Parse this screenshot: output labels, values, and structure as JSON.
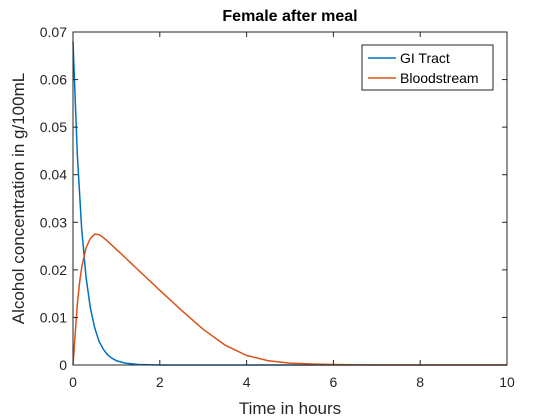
{
  "chart_data": {
    "type": "line",
    "title": "Female after meal",
    "xlabel": "Time in hours",
    "ylabel": "Alcohol concentration in g/100mL",
    "xlim": [
      0,
      10
    ],
    "ylim": [
      0,
      0.07
    ],
    "x_ticks": [
      0,
      2,
      4,
      6,
      8,
      10
    ],
    "x_tick_labels": [
      "0",
      "2",
      "4",
      "6",
      "8",
      "10"
    ],
    "y_ticks": [
      0,
      0.01,
      0.02,
      0.03,
      0.04,
      0.05,
      0.06,
      0.07
    ],
    "y_tick_labels": [
      "0",
      "0.01",
      "0.02",
      "0.03",
      "0.04",
      "0.05",
      "0.06",
      "0.07"
    ],
    "grid": false,
    "legend_position": "top-right",
    "series": [
      {
        "name": "GI Tract",
        "color": "#0072BD",
        "x": [
          0,
          0.1,
          0.2,
          0.3,
          0.4,
          0.5,
          0.6,
          0.7,
          0.8,
          0.9,
          1.0,
          1.2,
          1.5,
          2,
          3,
          4,
          5,
          6,
          7,
          8,
          9,
          10
        ],
        "y": [
          0.068,
          0.0441,
          0.0286,
          0.0185,
          0.012,
          0.0078,
          0.005,
          0.0033,
          0.0021,
          0.0014,
          0.0009,
          0.0004,
          0.0001,
          0,
          0,
          0,
          0,
          0,
          0,
          0,
          0,
          0
        ]
      },
      {
        "name": "Bloodstream",
        "color": "#D95319",
        "x": [
          0,
          0.05,
          0.1,
          0.15,
          0.2,
          0.3,
          0.4,
          0.5,
          0.6,
          0.7,
          0.8,
          1.0,
          1.2,
          1.5,
          2.0,
          2.5,
          3.0,
          3.5,
          4.0,
          4.5,
          5.0,
          5.5,
          6.0,
          7.0,
          8.0,
          9.0,
          10.0
        ],
        "y": [
          0,
          0.0065,
          0.0128,
          0.0172,
          0.0205,
          0.0246,
          0.0266,
          0.0275,
          0.0274,
          0.0268,
          0.026,
          0.0243,
          0.0226,
          0.02,
          0.0157,
          0.0115,
          0.0075,
          0.0042,
          0.002,
          0.0009,
          0.0004,
          0.0002,
          0.0001,
          0,
          0,
          0,
          0
        ]
      }
    ]
  }
}
